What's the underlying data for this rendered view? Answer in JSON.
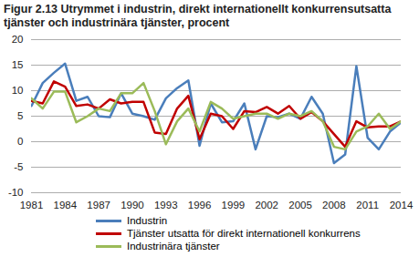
{
  "chart_data": {
    "type": "line",
    "title": "Figur 2.13 Utrymmet i industrin, direkt internationellt konkurrensutsatta tjänster och industrinära tjänster, procent",
    "x": [
      1981,
      1982,
      1983,
      1984,
      1985,
      1986,
      1987,
      1988,
      1989,
      1990,
      1991,
      1992,
      1993,
      1994,
      1995,
      1996,
      1997,
      1998,
      1999,
      2000,
      2001,
      2002,
      2003,
      2004,
      2005,
      2006,
      2007,
      2008,
      2009,
      2010,
      2011,
      2012,
      2013,
      2014
    ],
    "series": [
      {
        "name": "Industrin",
        "color": "#4a7ebb",
        "values": [
          7,
          11.5,
          13.5,
          15.3,
          8,
          8.8,
          5,
          4.8,
          9.5,
          5.5,
          5,
          4.3,
          8.5,
          10.5,
          12,
          -0.8,
          7.5,
          3.8,
          4,
          7.5,
          -1.5,
          5,
          4.8,
          5.5,
          4.5,
          8.8,
          5.5,
          -4.2,
          -2.5,
          14.8,
          0.8,
          -1.5,
          2,
          3.8
        ]
      },
      {
        "name": "Tjänster utsatta för direkt internationell konkurrens",
        "color": "#c00000",
        "values": [
          8,
          7.5,
          11.8,
          10.8,
          7,
          7.3,
          6.5,
          8.3,
          7.5,
          7.8,
          7.8,
          1.8,
          1.5,
          6.5,
          9,
          0.5,
          5.5,
          5,
          2.5,
          6,
          5.8,
          6.8,
          5.5,
          7,
          4.5,
          5.8,
          4,
          1.5,
          -1,
          4,
          2.8,
          3,
          3,
          4
        ]
      },
      {
        "name": "Industrinära tjänster",
        "color": "#9bbb59",
        "values": [
          8.5,
          6.5,
          9.8,
          9.8,
          3.8,
          5,
          6.5,
          6,
          9.5,
          9.5,
          11.5,
          6,
          -0.5,
          4,
          6.5,
          2,
          7.8,
          6.5,
          4.5,
          5,
          5.5,
          5.5,
          4.5,
          5.5,
          5,
          6,
          4,
          -1,
          -1.5,
          2,
          3,
          5.5,
          2.5,
          4
        ]
      }
    ],
    "xlim": [
      1981,
      2014
    ],
    "xticks": [
      1981,
      1984,
      1987,
      1990,
      1993,
      1996,
      1999,
      2002,
      2005,
      2008,
      2011,
      2014
    ],
    "ylim": [
      -10,
      20
    ],
    "yticks": [
      -10,
      -5,
      0,
      5,
      10,
      15,
      20
    ],
    "grid": true,
    "legend": "bottom"
  }
}
